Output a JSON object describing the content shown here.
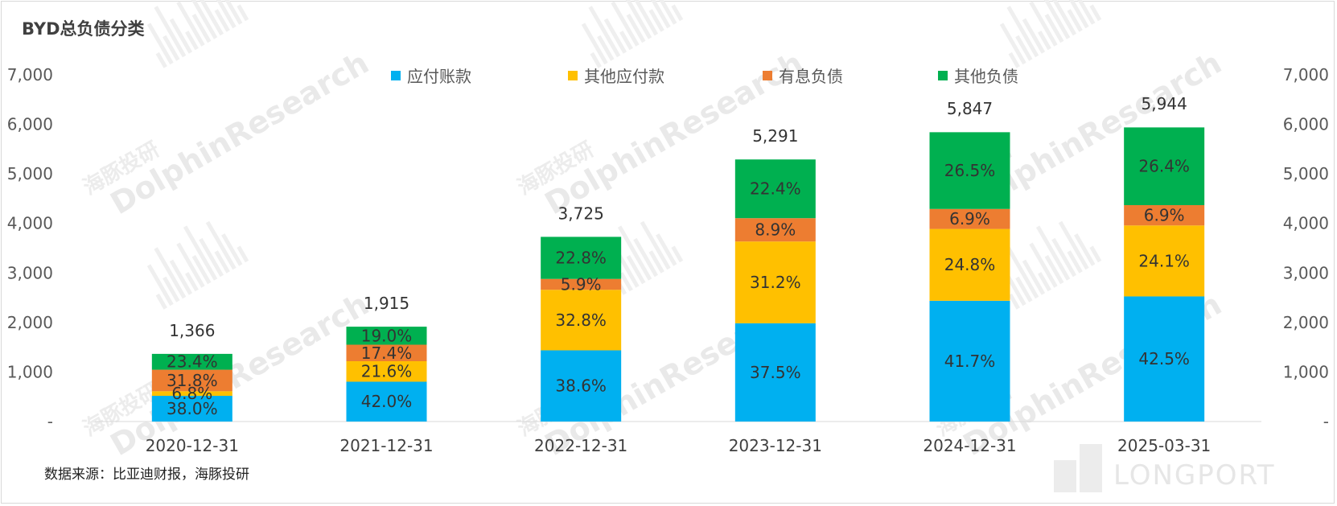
{
  "chart_data": {
    "type": "bar",
    "stacked": true,
    "title": "BYD总负债分类",
    "categories": [
      "2020-12-31",
      "2021-12-31",
      "2022-12-31",
      "2023-12-31",
      "2024-12-31",
      "2025-03-31"
    ],
    "totals": [
      1366,
      1915,
      3725,
      5291,
      5847,
      5944
    ],
    "total_labels": [
      "1,366",
      "1,915",
      "3,725",
      "5,291",
      "5,847",
      "5,944"
    ],
    "series": [
      {
        "name": "应付账款",
        "color": "#00b0f0",
        "shares": [
          38.0,
          42.0,
          38.6,
          37.5,
          41.7,
          42.5
        ],
        "labels": [
          "38.0%",
          "42.0%",
          "38.6%",
          "37.5%",
          "41.7%",
          "42.5%"
        ]
      },
      {
        "name": "其他应付款",
        "color": "#ffc000",
        "shares": [
          6.8,
          21.6,
          32.8,
          31.2,
          24.8,
          24.1
        ],
        "labels": [
          "6.8%",
          "21.6%",
          "32.8%",
          "31.2%",
          "24.8%",
          "24.1%"
        ]
      },
      {
        "name": "有息负债",
        "color": "#ed7d31",
        "shares": [
          31.8,
          17.4,
          5.9,
          8.9,
          6.9,
          6.9
        ],
        "labels": [
          "31.8%",
          "17.4%",
          "5.9%",
          "8.9%",
          "6.9%",
          "6.9%"
        ]
      },
      {
        "name": "其他负债",
        "color": "#00b050",
        "shares": [
          23.4,
          19.0,
          22.8,
          22.4,
          26.5,
          26.4
        ],
        "labels": [
          "23.4%",
          "19.0%",
          "22.8%",
          "22.4%",
          "26.5%",
          "26.4%"
        ]
      }
    ],
    "ylim": [
      0,
      7000
    ],
    "yticks": [
      0,
      1000,
      2000,
      3000,
      4000,
      5000,
      6000,
      7000
    ],
    "ytick_labels": [
      "-",
      "1,000",
      "2,000",
      "3,000",
      "4,000",
      "5,000",
      "6,000",
      "7,000"
    ],
    "secondary_axis": true,
    "grid": false,
    "legend_position": "top"
  },
  "source_note": "数据来源：比亚迪财报，海豚投研",
  "watermark": {
    "text": "DolphinResearch",
    "cn": "海豚投研",
    "brand": "LONGPORT"
  }
}
